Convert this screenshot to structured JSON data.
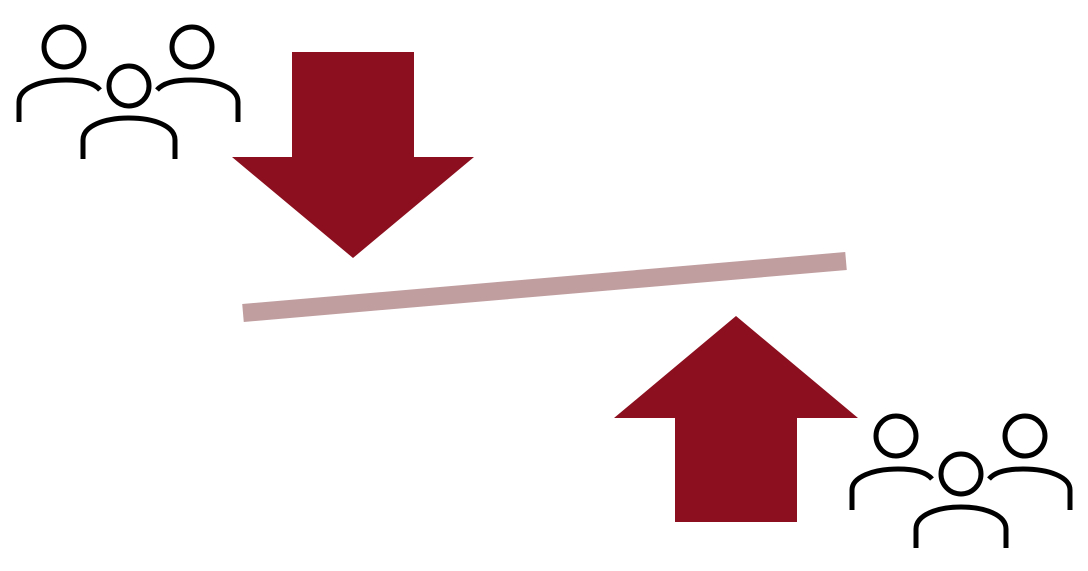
{
  "diagram": {
    "description_items": [],
    "colors": {
      "arrow": "#8b0f1e",
      "beam": "#c09ea0",
      "icon_stroke": "#000000",
      "background": "#ffffff"
    },
    "icons": {
      "top_left_group": "people-group-icon",
      "bottom_right_group": "people-group-icon",
      "down_arrow": "arrow-down-icon",
      "up_arrow": "arrow-up-icon",
      "beam": "tilted-beam"
    }
  }
}
